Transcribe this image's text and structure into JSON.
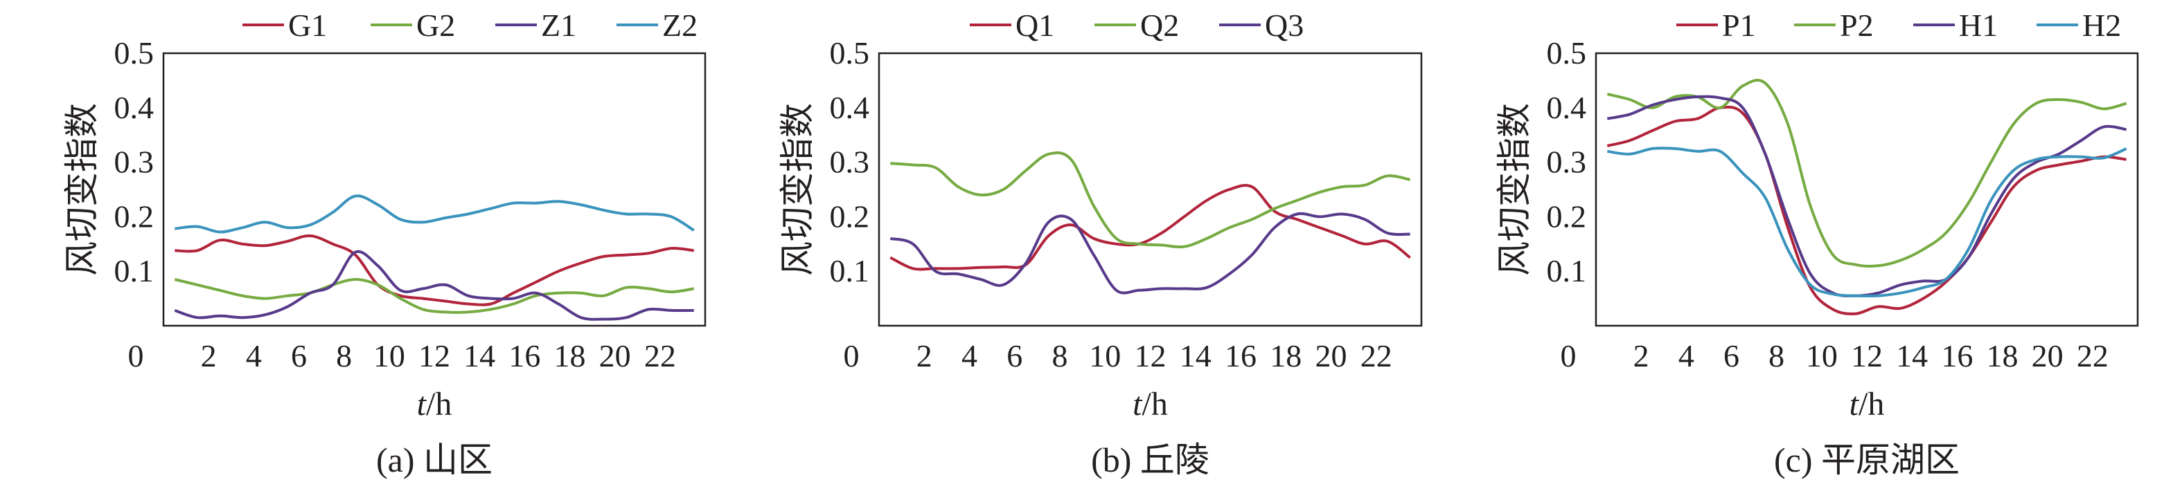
{
  "figure": {
    "zero_label": "0",
    "y_tick_labels": [
      "0.1",
      "0.2",
      "0.3",
      "0.4",
      "0.5"
    ],
    "x_tick_labels": [
      "2",
      "4",
      "6",
      "8",
      "10",
      "12",
      "14",
      "16",
      "18",
      "20",
      "22"
    ]
  },
  "chart_data": [
    {
      "type": "line",
      "caption": "(a) 山区",
      "xlabel_var": "t",
      "xlabel_unit": "/h",
      "ylabel": "风切变指数",
      "xlim": [
        0,
        24
      ],
      "ylim": [
        0,
        0.5
      ],
      "grid": false,
      "legend_position": "top",
      "x": [
        0.5,
        1.5,
        2.5,
        3.5,
        4.5,
        5.5,
        6.5,
        7.5,
        8.5,
        9.5,
        10.5,
        11.5,
        12.5,
        13.5,
        14.5,
        15.5,
        16.5,
        17.5,
        18.5,
        19.5,
        20.5,
        21.5,
        22.5,
        23.5
      ],
      "series": [
        {
          "name": "G1",
          "color": "#b2243b",
          "values": [
            0.138,
            0.138,
            0.157,
            0.15,
            0.147,
            0.155,
            0.165,
            0.15,
            0.13,
            0.075,
            0.055,
            0.05,
            0.045,
            0.04,
            0.04,
            0.06,
            0.08,
            0.1,
            0.115,
            0.127,
            0.13,
            0.133,
            0.142,
            0.138
          ]
        },
        {
          "name": "G2",
          "color": "#76ab42",
          "values": [
            0.085,
            0.075,
            0.065,
            0.055,
            0.05,
            0.055,
            0.06,
            0.075,
            0.085,
            0.075,
            0.05,
            0.03,
            0.025,
            0.025,
            0.03,
            0.04,
            0.055,
            0.06,
            0.06,
            0.055,
            0.07,
            0.068,
            0.062,
            0.068
          ]
        },
        {
          "name": "Z1",
          "color": "#573a8a",
          "values": [
            0.028,
            0.015,
            0.018,
            0.015,
            0.02,
            0.035,
            0.06,
            0.075,
            0.135,
            0.11,
            0.065,
            0.068,
            0.075,
            0.055,
            0.05,
            0.05,
            0.06,
            0.04,
            0.015,
            0.012,
            0.015,
            0.03,
            0.028,
            0.028
          ]
        },
        {
          "name": "Z2",
          "color": "#3a93bd",
          "values": [
            0.178,
            0.182,
            0.172,
            0.18,
            0.19,
            0.18,
            0.185,
            0.208,
            0.238,
            0.222,
            0.195,
            0.19,
            0.198,
            0.205,
            0.215,
            0.225,
            0.225,
            0.228,
            0.222,
            0.212,
            0.205,
            0.205,
            0.2,
            0.175
          ]
        }
      ]
    },
    {
      "type": "line",
      "caption": "(b) 丘陵",
      "xlabel_var": "t",
      "xlabel_unit": "/h",
      "ylabel": "风切变指数",
      "xlim": [
        0,
        24
      ],
      "ylim": [
        0,
        0.5
      ],
      "grid": false,
      "legend_position": "top",
      "x": [
        0.5,
        1.5,
        2.5,
        3.5,
        4.5,
        5.5,
        6.5,
        7.5,
        8.5,
        9.5,
        10.5,
        11.5,
        12.5,
        13.5,
        14.5,
        15.5,
        16.5,
        17.5,
        18.5,
        19.5,
        20.5,
        21.5,
        22.5,
        23.5
      ],
      "series": [
        {
          "name": "Q1",
          "color": "#b2243b",
          "values": [
            0.125,
            0.105,
            0.105,
            0.105,
            0.107,
            0.108,
            0.112,
            0.165,
            0.185,
            0.16,
            0.15,
            0.15,
            0.17,
            0.2,
            0.23,
            0.25,
            0.255,
            0.21,
            0.195,
            0.18,
            0.165,
            0.15,
            0.155,
            0.125
          ]
        },
        {
          "name": "Q2",
          "color": "#76ab42",
          "values": [
            0.298,
            0.295,
            0.29,
            0.255,
            0.24,
            0.25,
            0.285,
            0.315,
            0.305,
            0.22,
            0.16,
            0.15,
            0.148,
            0.145,
            0.16,
            0.18,
            0.195,
            0.215,
            0.23,
            0.245,
            0.255,
            0.258,
            0.275,
            0.268
          ]
        },
        {
          "name": "Q3",
          "color": "#573a8a",
          "values": [
            0.16,
            0.15,
            0.1,
            0.095,
            0.085,
            0.075,
            0.115,
            0.19,
            0.195,
            0.13,
            0.065,
            0.065,
            0.068,
            0.068,
            0.07,
            0.095,
            0.13,
            0.18,
            0.205,
            0.2,
            0.205,
            0.195,
            0.17,
            0.168
          ]
        }
      ]
    },
    {
      "type": "line",
      "caption": "(c) 平原湖区",
      "xlabel_var": "t",
      "xlabel_unit": "/h",
      "ylabel": "风切变指数",
      "xlim": [
        0,
        24
      ],
      "ylim": [
        0,
        0.5
      ],
      "grid": false,
      "legend_position": "top",
      "x": [
        0.5,
        1.5,
        2.5,
        3.5,
        4.5,
        5.5,
        6.5,
        7.5,
        8.5,
        9.5,
        10.5,
        11.5,
        12.5,
        13.5,
        14.5,
        15.5,
        16.5,
        17.5,
        18.5,
        19.5,
        20.5,
        21.5,
        22.5,
        23.5
      ],
      "series": [
        {
          "name": "P1",
          "color": "#b2243b",
          "values": [
            0.33,
            0.34,
            0.358,
            0.375,
            0.38,
            0.4,
            0.39,
            0.315,
            0.18,
            0.07,
            0.03,
            0.022,
            0.035,
            0.032,
            0.05,
            0.08,
            0.125,
            0.19,
            0.255,
            0.285,
            0.295,
            0.302,
            0.31,
            0.305
          ]
        },
        {
          "name": "P2",
          "color": "#76ab42",
          "values": [
            0.425,
            0.415,
            0.4,
            0.42,
            0.42,
            0.4,
            0.44,
            0.445,
            0.37,
            0.22,
            0.13,
            0.112,
            0.11,
            0.12,
            0.14,
            0.17,
            0.225,
            0.3,
            0.37,
            0.408,
            0.415,
            0.41,
            0.398,
            0.408
          ]
        },
        {
          "name": "H1",
          "color": "#573a8a",
          "values": [
            0.38,
            0.388,
            0.405,
            0.415,
            0.42,
            0.418,
            0.4,
            0.315,
            0.195,
            0.095,
            0.06,
            0.055,
            0.06,
            0.075,
            0.082,
            0.085,
            0.125,
            0.205,
            0.27,
            0.3,
            0.315,
            0.34,
            0.365,
            0.36
          ]
        },
        {
          "name": "H2",
          "color": "#3a93bd",
          "values": [
            0.32,
            0.315,
            0.325,
            0.325,
            0.32,
            0.32,
            0.28,
            0.235,
            0.14,
            0.075,
            0.058,
            0.055,
            0.055,
            0.06,
            0.07,
            0.085,
            0.14,
            0.23,
            0.285,
            0.305,
            0.31,
            0.31,
            0.308,
            0.325
          ]
        }
      ]
    }
  ]
}
